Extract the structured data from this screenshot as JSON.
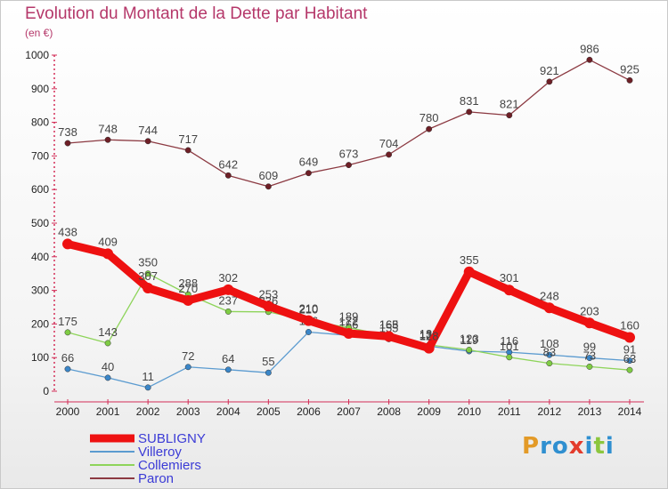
{
  "header": {
    "title": "Evolution du Montant de la Dette par Habitant",
    "subtitle": "(en €)"
  },
  "brand": {
    "name": "Proxiti",
    "letters": [
      {
        "ch": "P",
        "color": "#e39a27"
      },
      {
        "ch": "r",
        "color": "#2f8fd0"
      },
      {
        "ch": "o",
        "color": "#2f8fd0"
      },
      {
        "ch": "x",
        "color": "#e33b2c"
      },
      {
        "ch": "i",
        "color": "#2f8fd0"
      },
      {
        "ch": "t",
        "color": "#8cc63e"
      },
      {
        "ch": "i",
        "color": "#2f8fd0"
      }
    ]
  },
  "chart_data": {
    "type": "line",
    "title": "Evolution du Montant de la Dette par Habitant",
    "subtitle": "(en €)",
    "xlabel": "",
    "ylabel": "",
    "ylim": [
      0,
      1000
    ],
    "yticks": [
      0,
      100,
      200,
      300,
      400,
      500,
      600,
      700,
      800,
      900,
      1000
    ],
    "grid": false,
    "legend_position": "bottom-left",
    "x": [
      "2000",
      "2001",
      "2002",
      "2003",
      "2004",
      "2005",
      "2006",
      "2007",
      "2008",
      "2009",
      "2010",
      "2011",
      "2012",
      "2013",
      "2014"
    ],
    "series": [
      {
        "name": "SUBLIGNY",
        "color": "#ee1111",
        "width": 9,
        "marker_fill": "#ee1111",
        "values": [
          438,
          409,
          307,
          270,
          302,
          253,
          210,
          172,
          163,
          128,
          355,
          301,
          248,
          203,
          160
        ]
      },
      {
        "name": "Villeroy",
        "color": "#5b9bd0",
        "width": 1.3,
        "marker_fill": "#3a86c8",
        "values": [
          66,
          40,
          11,
          72,
          64,
          55,
          176,
          166,
          155,
          134,
          119,
          116,
          108,
          99,
          91
        ]
      },
      {
        "name": "Collemiers",
        "color": "#8ed45a",
        "width": 1.3,
        "marker_fill": "#7fcc44",
        "values": [
          175,
          143,
          350,
          288,
          237,
          236,
          210,
          189,
          165,
          138,
          123,
          101,
          83,
          73,
          63
        ]
      },
      {
        "name": "Paron",
        "color": "#8c3a42",
        "width": 1.3,
        "marker_fill": "#6e1f26",
        "values": [
          738,
          748,
          744,
          717,
          642,
          609,
          649,
          673,
          704,
          780,
          831,
          821,
          921,
          986,
          925
        ]
      }
    ]
  }
}
